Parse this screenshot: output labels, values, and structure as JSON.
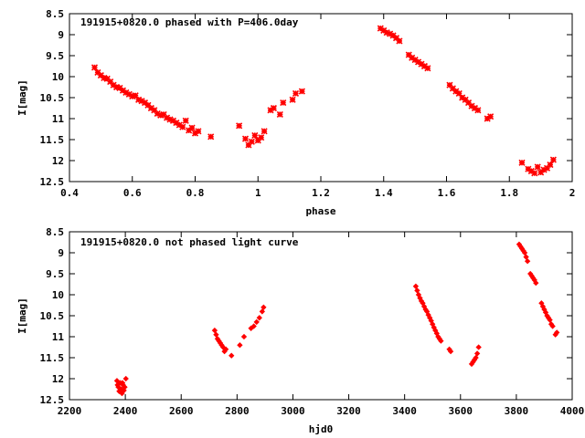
{
  "chart_data": [
    {
      "type": "scatter",
      "title": "191915+0820.0 phased with P=406.0day",
      "xlabel": "phase",
      "ylabel": "I[mag]",
      "xlim": [
        0.4,
        2.0
      ],
      "ylim": [
        12.5,
        8.5
      ],
      "y_inverted": true,
      "xticks": [
        "0.4",
        "0.6",
        "0.8",
        "1",
        "1.2",
        "1.4",
        "1.6",
        "1.8",
        "2"
      ],
      "yticks": [
        "8.5",
        "9",
        "9.5",
        "10",
        "10.5",
        "11",
        "11.5",
        "12",
        "12.5"
      ],
      "grid": false,
      "marker": "plus-star",
      "color": "#ff0000",
      "series": [
        {
          "x": [
            0.48,
            0.49,
            0.5,
            0.51,
            0.52,
            0.53,
            0.54,
            0.55,
            0.56,
            0.57,
            0.58,
            0.59,
            0.6,
            0.61,
            0.62,
            0.63,
            0.64,
            0.65,
            0.66,
            0.67,
            0.68,
            0.69,
            0.7,
            0.71,
            0.72,
            0.73,
            0.74,
            0.75,
            0.76,
            0.77,
            0.78,
            0.79,
            0.8,
            0.81,
            0.85,
            0.94,
            0.96,
            0.97,
            0.98,
            0.99,
            1.0,
            1.01,
            1.02,
            1.04,
            1.05,
            1.07,
            1.08,
            1.11,
            1.12,
            1.14,
            1.39,
            1.4,
            1.41,
            1.42,
            1.43,
            1.44,
            1.45,
            1.48,
            1.49,
            1.5,
            1.51,
            1.52,
            1.53,
            1.54,
            1.61,
            1.62,
            1.63,
            1.64,
            1.65,
            1.66,
            1.67,
            1.68,
            1.69,
            1.7,
            1.73,
            1.74,
            1.84,
            1.86,
            1.87,
            1.88,
            1.89,
            1.9,
            1.91,
            1.92,
            1.93,
            1.94
          ],
          "y": [
            9.78,
            9.9,
            9.97,
            10.03,
            10.05,
            10.12,
            10.2,
            10.25,
            10.27,
            10.33,
            10.38,
            10.42,
            10.47,
            10.45,
            10.55,
            10.58,
            10.62,
            10.68,
            10.75,
            10.8,
            10.88,
            10.92,
            10.9,
            10.98,
            11.02,
            11.05,
            11.1,
            11.15,
            11.2,
            11.05,
            11.28,
            11.22,
            11.35,
            11.3,
            11.43,
            11.17,
            11.48,
            11.63,
            11.55,
            11.4,
            11.52,
            11.45,
            11.3,
            10.8,
            10.75,
            10.9,
            10.62,
            10.55,
            10.4,
            10.35,
            8.85,
            8.9,
            8.95,
            8.98,
            9.02,
            9.08,
            9.15,
            9.48,
            9.55,
            9.6,
            9.65,
            9.7,
            9.75,
            9.8,
            10.2,
            10.28,
            10.35,
            10.4,
            10.5,
            10.55,
            10.62,
            10.7,
            10.75,
            10.8,
            11.0,
            10.95,
            12.05,
            12.2,
            12.25,
            12.3,
            12.15,
            12.28,
            12.22,
            12.18,
            12.1,
            11.98
          ]
        }
      ]
    },
    {
      "type": "scatter",
      "title": "191915+0820.0 not phased light curve",
      "xlabel": "hjd0",
      "ylabel": "I[mag]",
      "xlim": [
        2200,
        4000
      ],
      "ylim": [
        12.5,
        8.5
      ],
      "y_inverted": true,
      "xticks": [
        "2200",
        "2400",
        "2600",
        "2800",
        "3000",
        "3200",
        "3400",
        "3600",
        "3800",
        "4000"
      ],
      "yticks": [
        "8.5",
        "9",
        "9.5",
        "10",
        "10.5",
        "11",
        "11.5",
        "12",
        "12.5"
      ],
      "grid": false,
      "marker": "diamond",
      "color": "#ff0000",
      "series": [
        {
          "x": [
            2370,
            2375,
            2378,
            2382,
            2385,
            2388,
            2392,
            2395,
            2398,
            2402,
            2372,
            2390,
            2720,
            2725,
            2730,
            2735,
            2740,
            2745,
            2750,
            2755,
            2760,
            2780,
            2810,
            2825,
            2850,
            2860,
            2870,
            2880,
            2890,
            2895,
            3440,
            3445,
            3450,
            3455,
            3460,
            3465,
            3470,
            3475,
            3480,
            3485,
            3490,
            3495,
            3500,
            3505,
            3510,
            3515,
            3520,
            3525,
            3530,
            3560,
            3565,
            3640,
            3645,
            3650,
            3655,
            3660,
            3665,
            3810,
            3815,
            3820,
            3825,
            3830,
            3835,
            3840,
            3850,
            3855,
            3860,
            3865,
            3870,
            3890,
            3895,
            3900,
            3905,
            3910,
            3915,
            3920,
            3925,
            3930,
            3940,
            3945
          ],
          "y": [
            12.05,
            12.2,
            12.3,
            12.1,
            12.25,
            12.35,
            12.15,
            12.28,
            12.2,
            12.0,
            12.15,
            12.1,
            10.85,
            10.95,
            11.05,
            11.1,
            11.15,
            11.2,
            11.25,
            11.35,
            11.3,
            11.45,
            11.2,
            11.0,
            10.8,
            10.75,
            10.65,
            10.55,
            10.4,
            10.3,
            9.8,
            9.9,
            10.0,
            10.08,
            10.15,
            10.2,
            10.28,
            10.35,
            10.4,
            10.48,
            10.55,
            10.62,
            10.7,
            10.78,
            10.85,
            10.92,
            11.0,
            11.05,
            11.1,
            11.3,
            11.35,
            11.65,
            11.6,
            11.55,
            11.5,
            11.4,
            11.25,
            8.8,
            8.85,
            8.9,
            8.95,
            9.0,
            9.1,
            9.2,
            9.5,
            9.55,
            9.6,
            9.65,
            9.72,
            10.2,
            10.28,
            10.35,
            10.42,
            10.5,
            10.55,
            10.6,
            10.7,
            10.75,
            10.95,
            10.9
          ]
        }
      ]
    }
  ]
}
